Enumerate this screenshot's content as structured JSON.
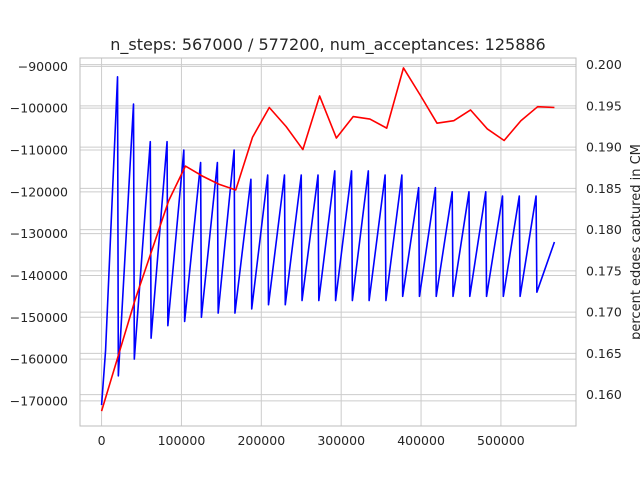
{
  "chart_data": {
    "type": "line",
    "title": "n_steps: 567000 / 577200, num_acceptances: 125886",
    "xlabel": "",
    "ylabel_left": "",
    "ylabel_right": "percent edges captured in CM",
    "xlim": [
      -27000,
      594000
    ],
    "ylim_left": [
      -176000,
      -88000
    ],
    "ylim_right": [
      0.1562,
      0.2008
    ],
    "grid": true,
    "legend": "none",
    "x_ticks": [
      "0",
      "100000",
      "200000",
      "300000",
      "400000",
      "500000"
    ],
    "x_tick_values": [
      0,
      100000,
      200000,
      300000,
      400000,
      500000
    ],
    "y_left_ticks": [
      "−90000",
      "−100000",
      "−110000",
      "−120000",
      "−130000",
      "−140000",
      "−150000",
      "−160000",
      "−170000"
    ],
    "y_left_tick_values": [
      -90000,
      -100000,
      -110000,
      -120000,
      -130000,
      -140000,
      -150000,
      -160000,
      -170000
    ],
    "y_right_ticks": [
      "0.200",
      "0.195",
      "0.190",
      "0.185",
      "0.180",
      "0.175",
      "0.170",
      "0.165",
      "0.160"
    ],
    "y_right_tick_values": [
      0.2,
      0.195,
      0.19,
      0.185,
      0.18,
      0.175,
      0.17,
      0.165,
      0.16
    ],
    "series": [
      {
        "axis": "left",
        "color": "#0000ff",
        "x": [
          0,
          5000,
          20000,
          21000,
          40000,
          41000,
          61000,
          62000,
          82000,
          83000,
          103000,
          104000,
          124000,
          125000,
          145000,
          146000,
          166000,
          167000,
          187000,
          188000,
          208000,
          209000,
          229000,
          230000,
          250000,
          251000,
          271000,
          272000,
          292000,
          293000,
          313000,
          314000,
          334000,
          335000,
          355000,
          356000,
          376000,
          377000,
          397000,
          398000,
          418000,
          419000,
          439000,
          440000,
          460000,
          461000,
          481000,
          482000,
          502000,
          503000,
          523000,
          524000,
          544000,
          545000,
          567000
        ],
        "y": [
          -171000,
          -158000,
          -92500,
          -164000,
          -99000,
          -160000,
          -108000,
          -155000,
          -108000,
          -152000,
          -110000,
          -151000,
          -113000,
          -150000,
          -113000,
          -149000,
          -110000,
          -149000,
          -117000,
          -148000,
          -116000,
          -147000,
          -116000,
          -147000,
          -116000,
          -146000,
          -116000,
          -146000,
          -115000,
          -146000,
          -115000,
          -146000,
          -115000,
          -146000,
          -116000,
          -146000,
          -116000,
          -145000,
          -119000,
          -145000,
          -119000,
          -145000,
          -120000,
          -145000,
          -120000,
          -145000,
          -120000,
          -145000,
          -121000,
          -145000,
          -121000,
          -145000,
          -121000,
          -144000,
          -132000
        ]
      },
      {
        "axis": "right",
        "color": "#ff0000",
        "x": [
          0,
          42000,
          84000,
          105000,
          126000,
          147000,
          168000,
          189000,
          210000,
          231000,
          252000,
          273000,
          294000,
          315000,
          336000,
          357000,
          378000,
          399000,
          420000,
          441000,
          462000,
          483000,
          504000,
          525000,
          546000,
          567000
        ],
        "y": [
          0.158,
          0.1715,
          0.1835,
          0.1877,
          0.1865,
          0.1855,
          0.1848,
          0.1912,
          0.1948,
          0.1925,
          0.1897,
          0.1962,
          0.1911,
          0.1937,
          0.1934,
          0.1923,
          0.1996,
          0.1963,
          0.1929,
          0.1932,
          0.1945,
          0.1922,
          0.1908,
          0.1932,
          0.1949,
          0.1948
        ]
      }
    ]
  }
}
